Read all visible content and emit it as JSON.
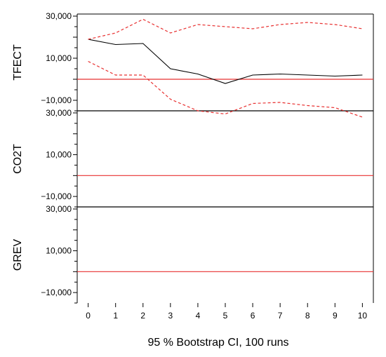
{
  "chart_data": {
    "type": "line",
    "caption": "95 % Bootstrap CI,  100 runs",
    "x": [
      0,
      1,
      2,
      3,
      4,
      5,
      6,
      7,
      8,
      9,
      10
    ],
    "x_ticks": [
      "0",
      "1",
      "2",
      "3",
      "4",
      "5",
      "6",
      "7",
      "8",
      "9",
      "10"
    ],
    "xlim": [
      -0.4,
      10.4
    ],
    "zero_line_color": "#e83030",
    "response_color": "#000000",
    "ci_color": "#e83030",
    "panels": [
      {
        "ylabel": "TFECT",
        "ylim": [
          -15000,
          31000
        ],
        "y_ticks": [
          {
            "value": 30000,
            "label": "30,000"
          },
          {
            "value": 10000,
            "label": "10,000"
          },
          {
            "value": -10000,
            "label": "−10,000"
          }
        ],
        "series": [
          {
            "role": "response",
            "values": [
              19000,
              16500,
              17000,
              5000,
              2500,
              -2000,
              2000,
              2500,
              2000,
              1500,
              2000
            ]
          },
          {
            "role": "upper",
            "values": [
              19000,
              22000,
              28500,
              22000,
              26000,
              25000,
              24000,
              26000,
              27000,
              26000,
              24000
            ]
          },
          {
            "role": "lower",
            "values": [
              8500,
              2000,
              2000,
              -9500,
              -15000,
              -16500,
              -11500,
              -11000,
              -12500,
              -13500,
              -18000
            ]
          }
        ]
      },
      {
        "ylabel": "CO2T",
        "ylim": [
          -15000,
          31000
        ],
        "y_ticks": [
          {
            "value": 30000,
            "label": "30,000"
          },
          {
            "value": 10000,
            "label": "10,000"
          },
          {
            "value": -10000,
            "label": "−10,000"
          }
        ],
        "series": []
      },
      {
        "ylabel": "GREV",
        "ylim": [
          -15000,
          31000
        ],
        "y_ticks": [
          {
            "value": 30000,
            "label": "30,000"
          },
          {
            "value": 10000,
            "label": "10,000"
          },
          {
            "value": -10000,
            "label": "−10,000"
          }
        ],
        "series": []
      }
    ]
  }
}
